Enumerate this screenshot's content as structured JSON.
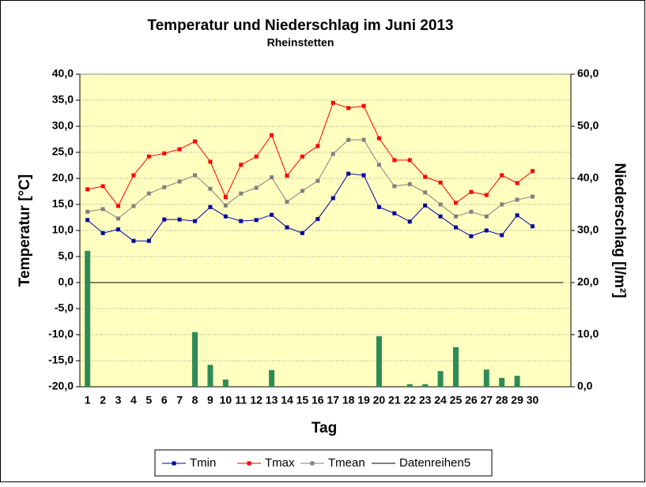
{
  "chart_data": {
    "type": "line",
    "title": "Temperatur und Niederschlag im Juni 2013",
    "subtitle": "Rheinstetten",
    "xlabel": "Tag",
    "ylabel": "Temperatur [°C]",
    "y2label": "Niederschlag [l/m²]",
    "categories": [
      "1",
      "2",
      "3",
      "4",
      "5",
      "6",
      "7",
      "8",
      "9",
      "10",
      "11",
      "12",
      "13",
      "14",
      "15",
      "16",
      "17",
      "18",
      "19",
      "20",
      "21",
      "22",
      "23",
      "24",
      "25",
      "26",
      "27",
      "28",
      "29",
      "30",
      null,
      null
    ],
    "series": [
      {
        "name": "Tmin",
        "color": "#0000a0",
        "type": "line",
        "values": [
          12.0,
          9.5,
          10.2,
          8.0,
          8.0,
          12.1,
          12.1,
          11.8,
          14.5,
          12.7,
          11.8,
          12.0,
          13.0,
          10.6,
          9.5,
          12.2,
          16.2,
          20.9,
          20.6,
          14.5,
          13.3,
          11.7,
          14.8,
          12.7,
          10.6,
          8.9,
          10.0,
          9.1,
          12.9,
          10.8,
          null,
          null
        ]
      },
      {
        "name": "Tmax",
        "color": "#ff0000",
        "type": "line",
        "values": [
          17.9,
          18.5,
          14.7,
          20.6,
          24.2,
          24.8,
          25.6,
          27.1,
          23.2,
          16.4,
          22.6,
          24.2,
          28.3,
          20.5,
          24.2,
          26.2,
          34.5,
          33.5,
          33.9,
          27.7,
          23.5,
          23.5,
          20.3,
          19.2,
          15.3,
          17.4,
          16.8,
          20.6,
          19.1,
          21.4,
          null,
          null
        ]
      },
      {
        "name": "Tmean",
        "color": "#808080",
        "type": "line",
        "values": [
          13.6,
          14.1,
          12.3,
          14.7,
          17.1,
          18.3,
          19.4,
          20.6,
          18.0,
          14.8,
          17.1,
          18.2,
          20.2,
          15.5,
          17.6,
          19.5,
          24.7,
          27.4,
          27.4,
          22.6,
          18.5,
          18.9,
          17.3,
          15.0,
          12.7,
          13.6,
          12.7,
          15.0,
          15.9,
          16.5,
          null,
          null
        ]
      },
      {
        "name": "Datenreihen5",
        "color": "#000000",
        "type": "line",
        "markers": false,
        "values": [
          0,
          0,
          0,
          0,
          0,
          0,
          0,
          0,
          0,
          0,
          0,
          0,
          0,
          0,
          0,
          0,
          0,
          0,
          0,
          0,
          0,
          0,
          0,
          0,
          0,
          0,
          0,
          0,
          0,
          0,
          0,
          0
        ]
      },
      {
        "color": "#2e8b57",
        "type": "bar",
        "axis": "y2",
        "values": [
          26.1,
          0,
          0,
          0,
          0,
          0,
          0,
          10.5,
          4.2,
          1.4,
          0,
          0,
          3.2,
          0,
          0,
          0,
          0,
          0,
          0,
          9.7,
          0,
          0.5,
          0.5,
          3.0,
          7.6,
          0,
          3.3,
          1.7,
          2.1,
          0,
          null,
          null
        ]
      }
    ],
    "ylim": [
      -20,
      40
    ],
    "yticks": [
      {
        "value": -20,
        "label": "-20,0"
      },
      {
        "value": -15,
        "label": "-15,0"
      },
      {
        "value": -10,
        "label": "-10,0"
      },
      {
        "value": -5,
        "label": "-5,0"
      },
      {
        "value": 0,
        "label": "0,0"
      },
      {
        "value": 5,
        "label": "5,0"
      },
      {
        "value": 10,
        "label": "10,0"
      },
      {
        "value": 15,
        "label": "15,0"
      },
      {
        "value": 20,
        "label": "20,0"
      },
      {
        "value": 25,
        "label": "25,0"
      },
      {
        "value": 30,
        "label": "30,0"
      },
      {
        "value": 35,
        "label": "35,0"
      },
      {
        "value": 40,
        "label": "40,0"
      }
    ],
    "y2lim": [
      0,
      60
    ],
    "y2ticks": [
      {
        "value": 0,
        "label": "0,0"
      },
      {
        "value": 10,
        "label": "10,0"
      },
      {
        "value": 20,
        "label": "20,0"
      },
      {
        "value": 30,
        "label": "30,0"
      },
      {
        "value": 40,
        "label": "40,0"
      },
      {
        "value": 50,
        "label": "50,0"
      },
      {
        "value": 60,
        "label": "60,0"
      }
    ],
    "grid": true,
    "legend": "bottom"
  }
}
